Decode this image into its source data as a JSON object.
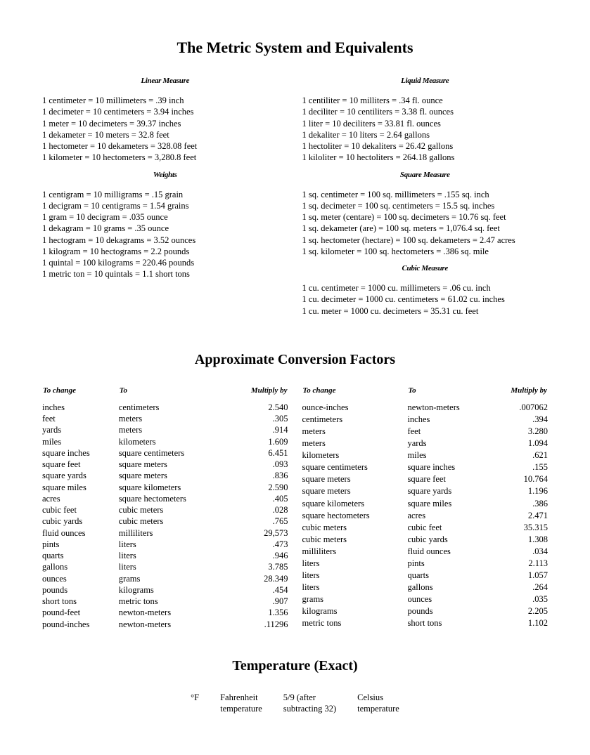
{
  "title": "The Metric System and Equivalents",
  "left_sections": [
    {
      "heading": "Linear Measure",
      "lines": [
        "1 centimeter = 10 millimeters = .39 inch",
        "1 decimeter = 10 centimeters = 3.94 inches",
        "1 meter = 10 decimeters = 39.37 inches",
        "1 dekameter = 10 meters = 32.8 feet",
        "1 hectometer = 10 dekameters = 328.08 feet",
        "1 kilometer = 10 hectometers = 3,280.8 feet"
      ]
    },
    {
      "heading": "Weights",
      "lines": [
        "1 centigram = 10 milligrams = .15 grain",
        "1 decigram = 10 centigrams = 1.54 grains",
        "1 gram = 10 decigram = .035 ounce",
        "1 dekagram = 10 grams = .35 ounce",
        "1 hectogram = 10 dekagrams = 3.52 ounces",
        "1 kilogram = 10 hectograms = 2.2 pounds",
        "1 quintal = 100 kilograms = 220.46 pounds",
        "1 metric ton = 10 quintals = 1.1 short tons"
      ]
    }
  ],
  "right_sections": [
    {
      "heading": "Liquid Measure",
      "lines": [
        "1 centiliter = 10 milliters = .34 fl. ounce",
        "1 deciliter = 10 centiliters = 3.38 fl. ounces",
        "1 liter = 10 deciliters = 33.81 fl. ounces",
        "1 dekaliter = 10 liters = 2.64 gallons",
        "1 hectoliter = 10 dekaliters = 26.42 gallons",
        "1 kiloliter = 10 hectoliters = 264.18 gallons"
      ]
    },
    {
      "heading": "Square Measure",
      "lines": [
        "1 sq. centimeter = 100 sq. millimeters = .155 sq. inch",
        "1 sq. decimeter = 100 sq. centimeters = 15.5 sq. inches",
        "1 sq. meter (centare) = 100 sq. decimeters = 10.76 sq. feet",
        "1 sq. dekameter (are) = 100 sq. meters = 1,076.4 sq. feet",
        "1 sq. hectometer (hectare) = 100 sq. dekameters = 2.47 acres",
        "1 sq. kilometer = 100 sq. hectometers = .386 sq. mile"
      ]
    },
    {
      "heading": "Cubic Measure",
      "lines": [
        "1 cu. centimeter = 1000 cu. millimeters = .06 cu. inch",
        "1 cu. decimeter = 1000 cu. centimeters = 61.02 cu. inches",
        "1 cu. meter = 1000 cu. decimeters = 35.31 cu. feet"
      ]
    }
  ],
  "conv_title": "Approximate Conversion Factors",
  "conv_headers": {
    "from": "To change",
    "to": "To",
    "mult": "Multiply by"
  },
  "conv_left": [
    [
      "inches",
      "centimeters",
      "2.540"
    ],
    [
      "feet",
      "meters",
      ".305"
    ],
    [
      "yards",
      "meters",
      ".914"
    ],
    [
      "miles",
      "kilometers",
      "1.609"
    ],
    [
      "square inches",
      "square centimeters",
      "6.451"
    ],
    [
      "square feet",
      "square meters",
      ".093"
    ],
    [
      "square yards",
      "square meters",
      ".836"
    ],
    [
      "square miles",
      "square kilometers",
      "2.590"
    ],
    [
      "acres",
      "square hectometers",
      ".405"
    ],
    [
      "cubic feet",
      "cubic meters",
      ".028"
    ],
    [
      "cubic yards",
      "cubic meters",
      ".765"
    ],
    [
      "fluid ounces",
      "milliliters",
      "29,573"
    ],
    [
      "pints",
      "liters",
      ".473"
    ],
    [
      "quarts",
      "liters",
      ".946"
    ],
    [
      "gallons",
      "liters",
      "3.785"
    ],
    [
      "ounces",
      "grams",
      "28.349"
    ],
    [
      "pounds",
      "kilograms",
      ".454"
    ],
    [
      "short tons",
      "metric tons",
      ".907"
    ],
    [
      "pound-feet",
      "newton-meters",
      "1.356"
    ],
    [
      "pound-inches",
      "newton-meters",
      ".11296"
    ]
  ],
  "conv_right": [
    [
      "ounce-inches",
      "newton-meters",
      ".007062"
    ],
    [
      "centimeters",
      "inches",
      ".394"
    ],
    [
      "meters",
      "feet",
      "3.280"
    ],
    [
      "meters",
      "yards",
      "1.094"
    ],
    [
      "kilometers",
      "miles",
      ".621"
    ],
    [
      "square centimeters",
      "square inches",
      ".155"
    ],
    [
      "square meters",
      "square feet",
      "10.764"
    ],
    [
      "square meters",
      "square yards",
      "1.196"
    ],
    [
      "square kilometers",
      "square miles",
      ".386"
    ],
    [
      "square hectometers",
      "acres",
      "2.471"
    ],
    [
      "cubic meters",
      "cubic feet",
      "35.315"
    ],
    [
      "cubic meters",
      "cubic yards",
      "1.308"
    ],
    [
      "milliliters",
      "fluid ounces",
      ".034"
    ],
    [
      "liters",
      "pints",
      "2.113"
    ],
    [
      "liters",
      "quarts",
      "1.057"
    ],
    [
      "liters",
      "gallons",
      ".264"
    ],
    [
      "grams",
      "ounces",
      ".035"
    ],
    [
      "kilograms",
      "pounds",
      "2.205"
    ],
    [
      "metric tons",
      "short tons",
      "1.102"
    ]
  ],
  "temp_title": "Temperature (Exact)",
  "temp": {
    "unit": "°F",
    "c1a": "Fahrenheit",
    "c1b": "temperature",
    "c2a": "5/9 (after",
    "c2b": "subtracting 32)",
    "c3a": "Celsius",
    "c3b": "temperature"
  }
}
